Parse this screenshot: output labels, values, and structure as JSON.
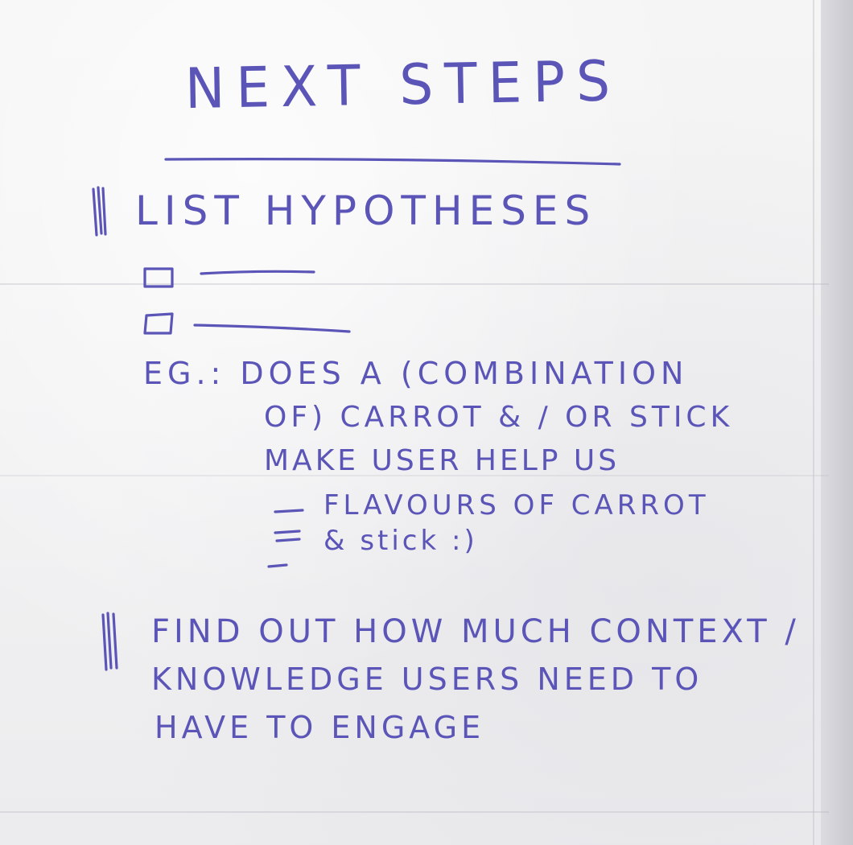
{
  "flipchart": {
    "title": "NEXT STEPS",
    "section_1": {
      "heading": "LIST HYPOTHESES",
      "example_lines": [
        "EG.: DOES A (COMBINATION",
        "OF) CARROT & / OR STICK",
        "MAKE USER HELP US",
        "FLAVOURS OF CARROT",
        "& stick :)"
      ]
    },
    "section_2": {
      "lines": [
        "FIND OUT HOW MUCH CONTEXT /",
        "KNOWLEDGE USERS NEED TO",
        "HAVE TO ENGAGE"
      ]
    },
    "ink_color": "#5b55b8",
    "paper_color": "#f2f2f3"
  }
}
